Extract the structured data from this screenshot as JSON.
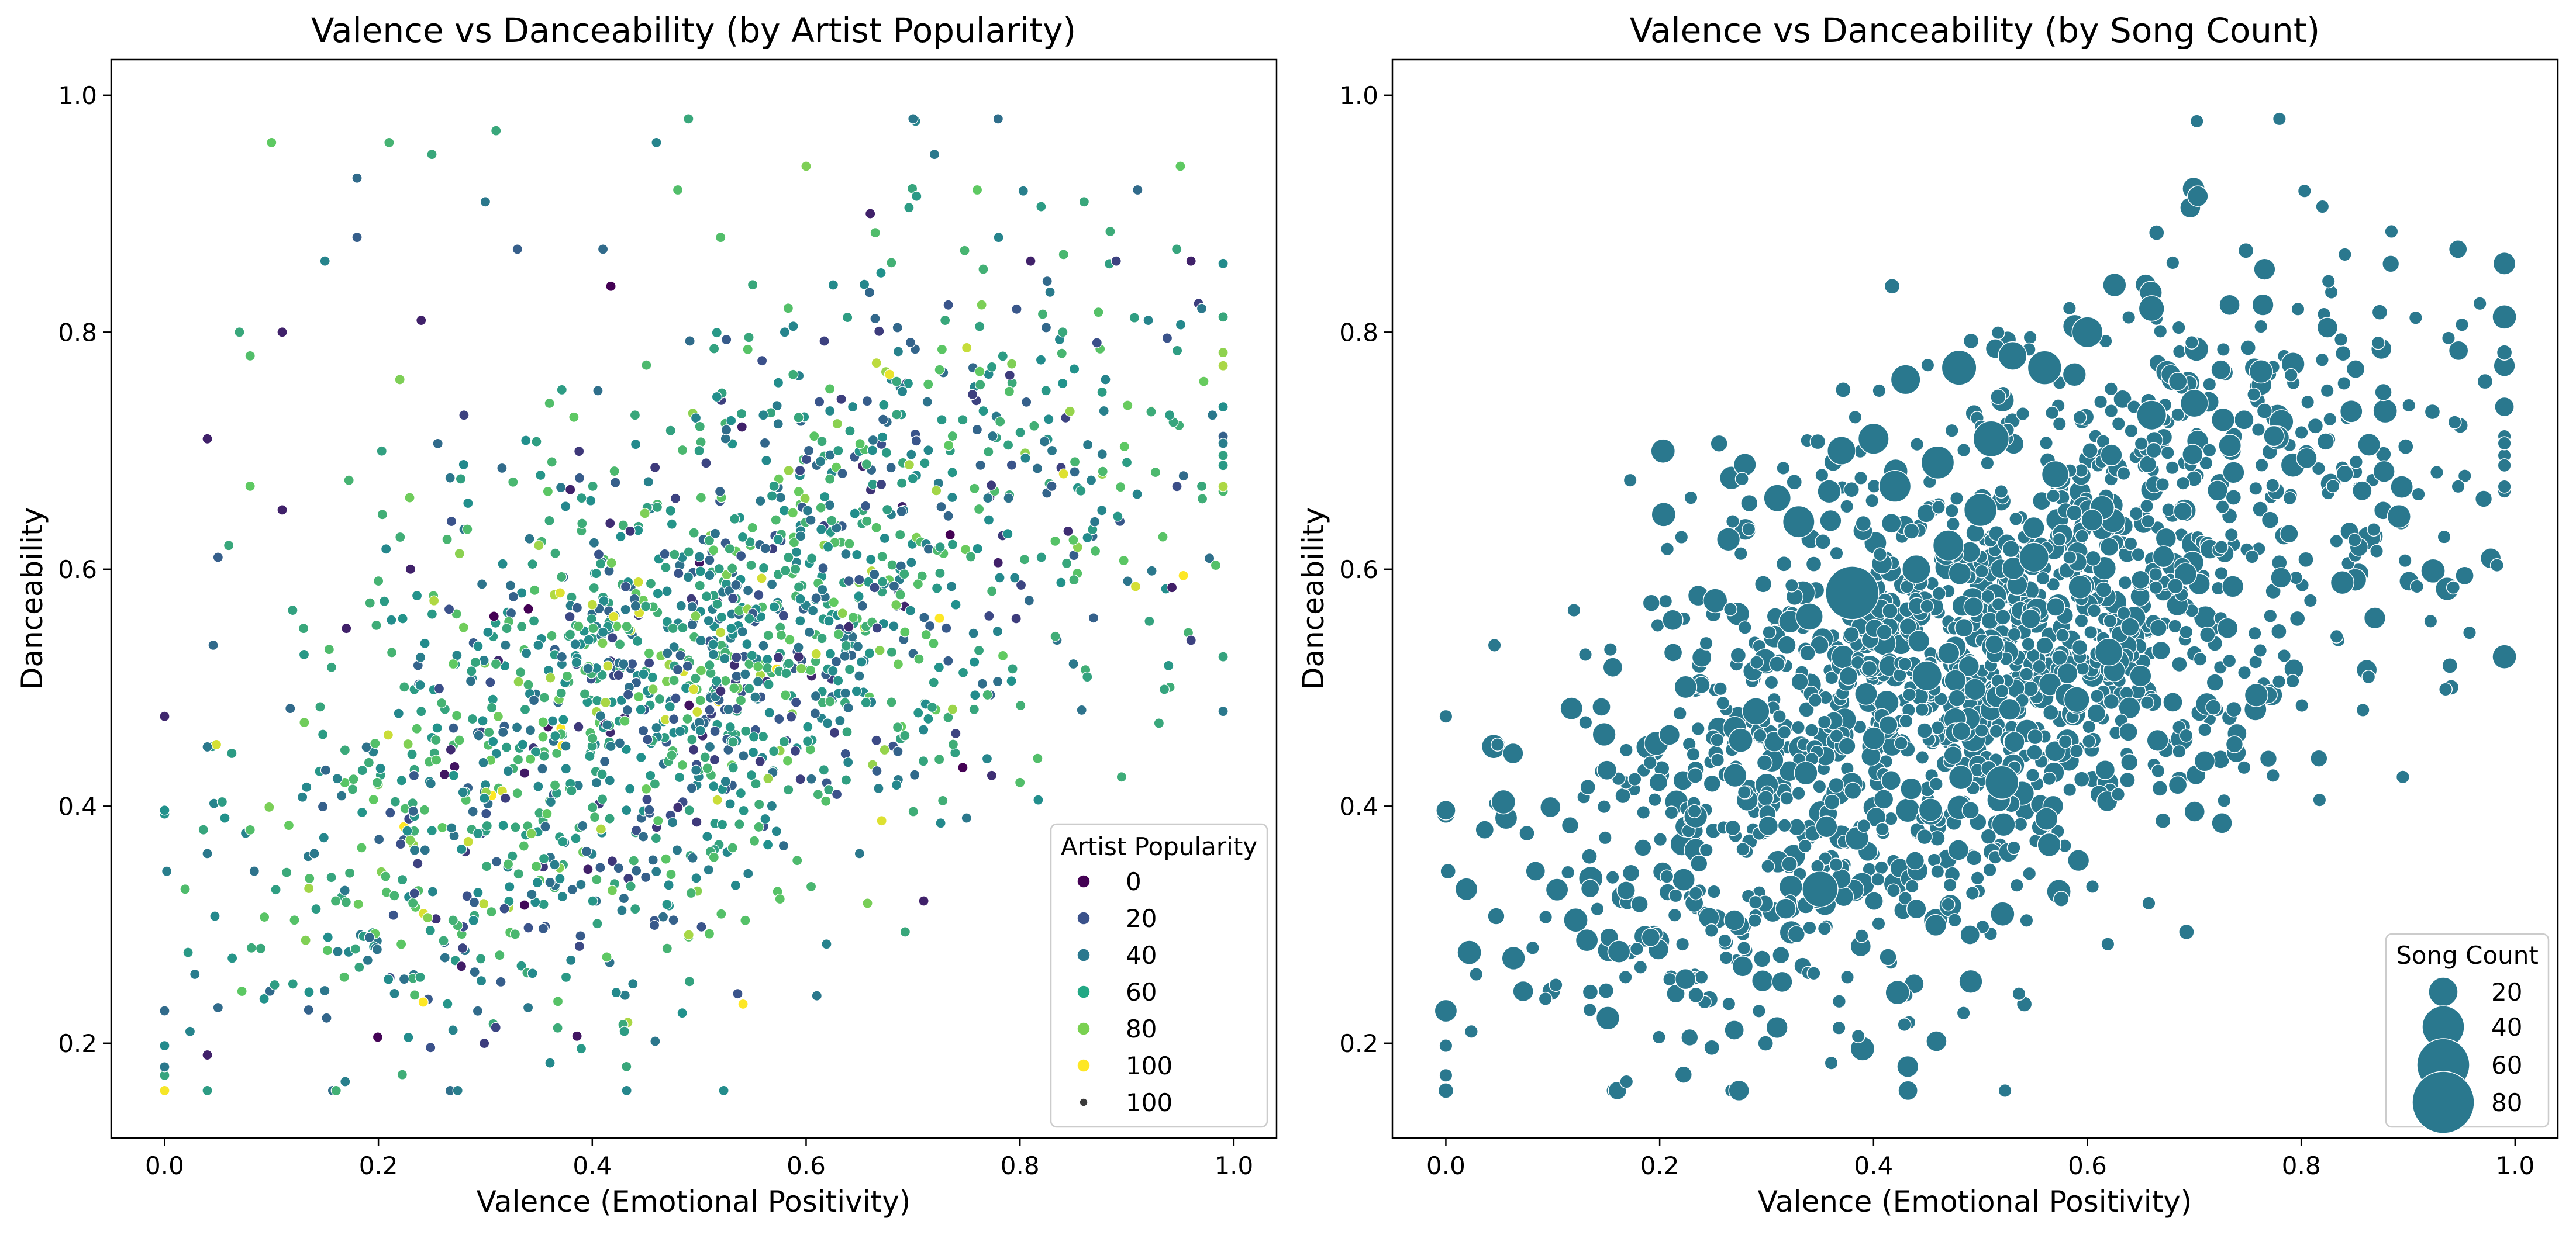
{
  "colors": {
    "viridis": [
      "#440154",
      "#3b528b",
      "#21918c",
      "#5ec962",
      "#fde725"
    ],
    "uniform_marker": "#2a788e",
    "edge": "#ffffff"
  },
  "chart_data": [
    {
      "type": "scatter",
      "title": "Valence vs Danceability (by Artist Popularity)",
      "xlabel": "Valence (Emotional Positivity)",
      "ylabel": "Danceability",
      "xlim": [
        -0.05,
        1.04
      ],
      "ylim": [
        0.12,
        1.03
      ],
      "xticks": [
        "0.0",
        "0.2",
        "0.4",
        "0.6",
        "0.8",
        "1.0"
      ],
      "yticks": [
        "0.2",
        "0.4",
        "0.6",
        "0.8",
        "1.0"
      ],
      "grid": false,
      "legend_position": "lower-right",
      "legend": {
        "title": "Artist Popularity",
        "entries": [
          {
            "label": "0",
            "color": "#440154",
            "kind": "hue"
          },
          {
            "label": "20",
            "color": "#3b528b",
            "kind": "hue"
          },
          {
            "label": "40",
            "color": "#2a788e",
            "kind": "hue"
          },
          {
            "label": "60",
            "color": "#22a884",
            "kind": "hue"
          },
          {
            "label": "80",
            "color": "#7ad151",
            "kind": "hue"
          },
          {
            "label": "100",
            "color": "#fde725",
            "kind": "hue"
          },
          {
            "label": "100",
            "color": "#3b3b3b",
            "kind": "size"
          }
        ]
      },
      "hue_variable": "Artist Popularity",
      "hue_range": [
        0,
        100
      ],
      "approx_point_count": 2500,
      "points": [
        [
          0.0,
          0.18,
          40
        ],
        [
          0.04,
          0.19,
          10
        ],
        [
          0.04,
          0.16,
          55
        ],
        [
          0.05,
          0.23,
          35
        ],
        [
          0.04,
          0.45,
          40
        ],
        [
          0.04,
          0.36,
          40
        ],
        [
          0.04,
          0.71,
          10
        ],
        [
          0.05,
          0.61,
          30
        ],
        [
          0.06,
          0.62,
          60
        ],
        [
          0.07,
          0.8,
          60
        ],
        [
          0.08,
          0.78,
          70
        ],
        [
          0.08,
          0.67,
          75
        ],
        [
          0.08,
          0.38,
          70
        ],
        [
          0.09,
          0.28,
          60
        ],
        [
          0.1,
          0.96,
          75
        ],
        [
          0.11,
          0.8,
          10
        ],
        [
          0.11,
          0.65,
          10
        ],
        [
          0.12,
          0.25,
          55
        ],
        [
          0.13,
          0.55,
          60
        ],
        [
          0.14,
          0.36,
          40
        ],
        [
          0.15,
          0.86,
          45
        ],
        [
          0.16,
          0.32,
          65
        ],
        [
          0.17,
          0.55,
          10
        ],
        [
          0.18,
          0.88,
          30
        ],
        [
          0.18,
          0.93,
          35
        ],
        [
          0.19,
          0.27,
          40
        ],
        [
          0.2,
          0.59,
          65
        ],
        [
          0.21,
          0.96,
          65
        ],
        [
          0.22,
          0.76,
          80
        ],
        [
          0.23,
          0.6,
          10
        ],
        [
          0.24,
          0.81,
          10
        ],
        [
          0.24,
          0.48,
          55
        ],
        [
          0.25,
          0.95,
          60
        ],
        [
          0.27,
          0.52,
          75
        ],
        [
          0.28,
          0.73,
          20
        ],
        [
          0.29,
          0.26,
          35
        ],
        [
          0.3,
          0.91,
          40
        ],
        [
          0.31,
          0.97,
          60
        ],
        [
          0.32,
          0.55,
          60
        ],
        [
          0.33,
          0.87,
          30
        ],
        [
          0.34,
          0.23,
          40
        ],
        [
          0.35,
          0.62,
          85
        ],
        [
          0.36,
          0.74,
          70
        ],
        [
          0.37,
          0.58,
          95
        ],
        [
          0.38,
          0.27,
          45
        ],
        [
          0.39,
          0.66,
          55
        ],
        [
          0.4,
          0.57,
          90
        ],
        [
          0.41,
          0.87,
          35
        ],
        [
          0.42,
          0.56,
          95
        ],
        [
          0.43,
          0.21,
          55
        ],
        [
          0.44,
          0.73,
          60
        ],
        [
          0.45,
          0.34,
          30
        ],
        [
          0.46,
          0.96,
          45
        ],
        [
          0.47,
          0.28,
          65
        ],
        [
          0.48,
          0.92,
          70
        ],
        [
          0.49,
          0.98,
          60
        ],
        [
          0.5,
          0.7,
          55
        ],
        [
          0.51,
          0.45,
          40
        ],
        [
          0.52,
          0.88,
          70
        ],
        [
          0.53,
          0.55,
          50
        ],
        [
          0.54,
          0.72,
          10
        ],
        [
          0.55,
          0.84,
          60
        ],
        [
          0.56,
          0.73,
          45
        ],
        [
          0.57,
          0.67,
          55
        ],
        [
          0.58,
          0.8,
          45
        ],
        [
          0.59,
          0.6,
          60
        ],
        [
          0.6,
          0.94,
          80
        ],
        [
          0.61,
          0.24,
          40
        ],
        [
          0.62,
          0.47,
          45
        ],
        [
          0.63,
          0.7,
          55
        ],
        [
          0.64,
          0.59,
          30
        ],
        [
          0.65,
          0.36,
          40
        ],
        [
          0.66,
          0.9,
          10
        ],
        [
          0.67,
          0.85,
          50
        ],
        [
          0.68,
          0.53,
          60
        ],
        [
          0.69,
          0.75,
          45
        ],
        [
          0.7,
          0.98,
          40
        ],
        [
          0.71,
          0.32,
          10
        ],
        [
          0.72,
          0.95,
          40
        ],
        [
          0.73,
          0.81,
          60
        ],
        [
          0.74,
          0.57,
          50
        ],
        [
          0.75,
          0.39,
          40
        ],
        [
          0.76,
          0.92,
          75
        ],
        [
          0.77,
          0.66,
          40
        ],
        [
          0.78,
          0.88,
          45
        ],
        [
          0.79,
          0.75,
          70
        ],
        [
          0.8,
          0.42,
          70
        ],
        [
          0.81,
          0.86,
          10
        ],
        [
          0.82,
          0.61,
          55
        ],
        [
          0.83,
          0.7,
          40
        ],
        [
          0.84,
          0.8,
          60
        ],
        [
          0.85,
          0.52,
          40
        ],
        [
          0.86,
          0.91,
          60
        ],
        [
          0.87,
          0.64,
          40
        ],
        [
          0.88,
          0.76,
          45
        ],
        [
          0.89,
          0.86,
          20
        ],
        [
          0.9,
          0.69,
          55
        ],
        [
          0.91,
          0.92,
          35
        ],
        [
          0.92,
          0.81,
          45
        ],
        [
          0.93,
          0.47,
          60
        ],
        [
          0.94,
          0.73,
          55
        ],
        [
          0.95,
          0.94,
          75
        ],
        [
          0.96,
          0.86,
          10
        ],
        [
          0.96,
          0.54,
          20
        ],
        [
          0.97,
          0.82,
          40
        ],
        [
          0.97,
          0.67,
          60
        ],
        [
          0.98,
          0.73,
          40
        ],
        [
          0.99,
          0.48,
          40
        ]
      ]
    },
    {
      "type": "scatter",
      "title": "Valence vs Danceability (by Song Count)",
      "xlabel": "Valence (Emotional Positivity)",
      "ylabel": "Danceability",
      "xlim": [
        -0.05,
        1.04
      ],
      "ylim": [
        0.12,
        1.03
      ],
      "xticks": [
        "0.0",
        "0.2",
        "0.4",
        "0.6",
        "0.8",
        "1.0"
      ],
      "yticks": [
        "0.2",
        "0.4",
        "0.6",
        "0.8",
        "1.0"
      ],
      "grid": false,
      "legend_position": "lower-right",
      "legend": {
        "title": "Song Count",
        "entries": [
          {
            "label": "20",
            "size": 20
          },
          {
            "label": "40",
            "size": 40
          },
          {
            "label": "60",
            "size": 60
          },
          {
            "label": "80",
            "size": 80
          }
        ]
      },
      "size_variable": "Song Count",
      "marker_color": "#2a788e",
      "highlight_points": [
        [
          0.38,
          0.58,
          80
        ],
        [
          0.35,
          0.33,
          30
        ],
        [
          0.52,
          0.42,
          25
        ],
        [
          0.51,
          0.71,
          30
        ],
        [
          0.48,
          0.77,
          28
        ],
        [
          0.56,
          0.77,
          26
        ],
        [
          0.46,
          0.69,
          24
        ],
        [
          0.42,
          0.67,
          22
        ],
        [
          0.5,
          0.65,
          24
        ],
        [
          0.33,
          0.64,
          22
        ],
        [
          0.6,
          0.8,
          20
        ],
        [
          0.4,
          0.71,
          20
        ],
        [
          0.55,
          0.61,
          18
        ],
        [
          0.45,
          0.51,
          18
        ],
        [
          0.66,
          0.73,
          18
        ],
        [
          0.47,
          0.62,
          20
        ],
        [
          0.43,
          0.76,
          18
        ],
        [
          0.37,
          0.7,
          16
        ],
        [
          0.62,
          0.53,
          15
        ],
        [
          0.7,
          0.74,
          15
        ],
        [
          0.29,
          0.48,
          14
        ],
        [
          0.59,
          0.49,
          12
        ],
        [
          0.31,
          0.66,
          14
        ],
        [
          0.53,
          0.78,
          16
        ],
        [
          0.44,
          0.6,
          16
        ],
        [
          0.66,
          0.82,
          12
        ],
        [
          0.57,
          0.68,
          14
        ],
        [
          0.34,
          0.56,
          14
        ]
      ]
    }
  ]
}
